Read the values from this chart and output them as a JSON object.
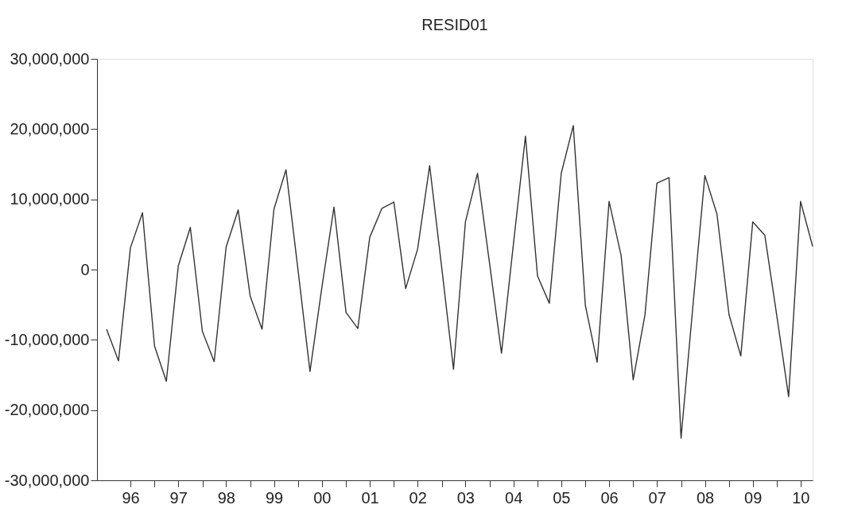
{
  "chart_data": {
    "type": "line",
    "title": "RESID01",
    "x": [
      "1996-01",
      "1996-04",
      "1996-07",
      "1996-10",
      "1997-01",
      "1997-04",
      "1997-07",
      "1997-10",
      "1998-01",
      "1998-04",
      "1998-07",
      "1998-10",
      "1999-01",
      "1999-04",
      "1999-07",
      "1999-10",
      "2000-01",
      "2000-04",
      "2000-07",
      "2000-10",
      "2001-01",
      "2001-04",
      "2001-07",
      "2001-10",
      "2002-01",
      "2002-04",
      "2002-07",
      "2002-10",
      "2003-01",
      "2003-04",
      "2003-07",
      "2003-10",
      "2004-01",
      "2004-04",
      "2004-07",
      "2004-10",
      "2005-01",
      "2005-04",
      "2005-07",
      "2005-10",
      "2006-01",
      "2006-04",
      "2006-07",
      "2006-10",
      "2007-01",
      "2007-04",
      "2007-07",
      "2007-10",
      "2008-01",
      "2008-04",
      "2008-07",
      "2008-10",
      "2009-01",
      "2009-04",
      "2009-07",
      "2009-10",
      "2010-01",
      "2010-04",
      "2010-07",
      "2010-10"
    ],
    "series": [
      {
        "color": "#333333",
        "values": [
          -8500000,
          -13000000,
          3100000,
          8100000,
          -10900000,
          -15900000,
          500000,
          6000000,
          -8800000,
          -13100000,
          3200000,
          8500000,
          -3800000,
          -8500000,
          8600000,
          14200000,
          -100000,
          -14500000,
          -2500000,
          8900000,
          -6100000,
          -8400000,
          4600000,
          8700000,
          9600000,
          -2700000,
          2900000,
          14800000,
          300000,
          -14200000,
          6800000,
          13700000,
          900000,
          -11900000,
          3600000,
          19000000,
          -900000,
          -4800000,
          13700000,
          20500000,
          -5100000,
          -13200000,
          9700000,
          2000000,
          -15700000,
          -6400000,
          12300000,
          13100000,
          -24000000,
          -5100000,
          13400000,
          7900000,
          -6400000,
          -12300000,
          6800000,
          4900000,
          -6600000,
          -18100000,
          9700000,
          3300000
        ]
      }
    ],
    "xlim": [
      "1995-10-20",
      "2010-10-01"
    ],
    "xticks": [
      {
        "value": "1996-07-01",
        "label": "96"
      },
      {
        "value": "1997-01-01",
        "label": null
      },
      {
        "value": "1997-07-01",
        "label": "97"
      },
      {
        "value": "1998-01-01",
        "label": null
      },
      {
        "value": "1998-07-01",
        "label": "98"
      },
      {
        "value": "1999-01-01",
        "label": null
      },
      {
        "value": "1999-07-01",
        "label": "99"
      },
      {
        "value": "2000-01-01",
        "label": null
      },
      {
        "value": "2000-07-01",
        "label": "00"
      },
      {
        "value": "2001-01-01",
        "label": null
      },
      {
        "value": "2001-07-01",
        "label": "01"
      },
      {
        "value": "2002-01-01",
        "label": null
      },
      {
        "value": "2002-07-01",
        "label": "02"
      },
      {
        "value": "2003-01-01",
        "label": null
      },
      {
        "value": "2003-07-01",
        "label": "03"
      },
      {
        "value": "2004-01-01",
        "label": null
      },
      {
        "value": "2004-07-01",
        "label": "04"
      },
      {
        "value": "2005-01-01",
        "label": null
      },
      {
        "value": "2005-07-01",
        "label": "05"
      },
      {
        "value": "2006-01-01",
        "label": null
      },
      {
        "value": "2006-07-01",
        "label": "06"
      },
      {
        "value": "2007-01-01",
        "label": null
      },
      {
        "value": "2007-07-01",
        "label": "07"
      },
      {
        "value": "2008-01-01",
        "label": null
      },
      {
        "value": "2008-07-01",
        "label": "08"
      },
      {
        "value": "2009-01-01",
        "label": null
      },
      {
        "value": "2009-07-01",
        "label": "09"
      },
      {
        "value": "2010-01-01",
        "label": null
      },
      {
        "value": "2010-07-01",
        "label": "10"
      }
    ],
    "ylim": [
      -30000000,
      30000000
    ],
    "yticks": [
      {
        "value": -30000000,
        "label": "-30,000,000"
      },
      {
        "value": -20000000,
        "label": "-20,000,000"
      },
      {
        "value": -10000000,
        "label": "-10,000,000"
      },
      {
        "value": 0,
        "label": "0"
      },
      {
        "value": 10000000,
        "label": "10,000,000"
      },
      {
        "value": 20000000,
        "label": "20,000,000"
      },
      {
        "value": 30000000,
        "label": "30,000,000"
      }
    ],
    "grid": false,
    "legend": false,
    "marker": "none",
    "line_style": "solid"
  }
}
